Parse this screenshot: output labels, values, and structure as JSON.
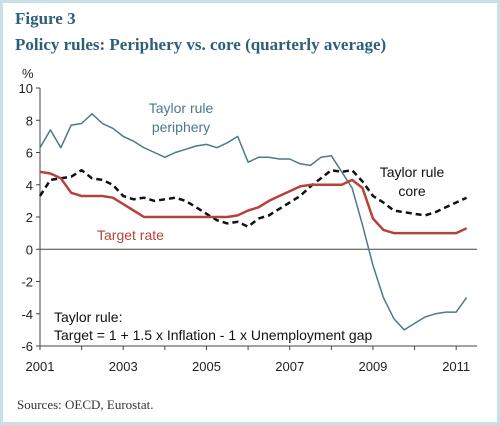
{
  "figure": {
    "label": "Figure 3",
    "title": "Policy rules: Periphery vs. core (quarterly average)",
    "sources": "Sources: OECD, Eurostat."
  },
  "chart_data": {
    "type": "line",
    "ylabel": "%",
    "xlim": [
      2001,
      2011.5
    ],
    "ylim": [
      -6,
      10
    ],
    "x_ticks": [
      2001,
      2003,
      2005,
      2007,
      2009,
      2011
    ],
    "y_ticks": [
      -6,
      -4,
      -2,
      0,
      2,
      4,
      6,
      8,
      10
    ],
    "grid": false,
    "colors": {
      "periphery": "#4a7a8c",
      "core": "#111111",
      "target": "#b5433a"
    },
    "series": [
      {
        "name": "Taylor rule periphery",
        "key": "periphery",
        "style": "solid",
        "x": [
          2001,
          2001.25,
          2001.5,
          2001.75,
          2002,
          2002.25,
          2002.5,
          2002.75,
          2003,
          2003.25,
          2003.5,
          2003.75,
          2004,
          2004.25,
          2004.5,
          2004.75,
          2005,
          2005.25,
          2005.5,
          2005.75,
          2006,
          2006.25,
          2006.5,
          2006.75,
          2007,
          2007.25,
          2007.5,
          2007.75,
          2008,
          2008.25,
          2008.5,
          2008.75,
          2009,
          2009.25,
          2009.5,
          2009.75,
          2010,
          2010.25,
          2010.5,
          2010.75,
          2011,
          2011.25
        ],
        "values": [
          6.3,
          7.4,
          6.3,
          7.7,
          7.8,
          8.4,
          7.8,
          7.5,
          7.0,
          6.7,
          6.3,
          6.0,
          5.7,
          6.0,
          6.2,
          6.4,
          6.5,
          6.3,
          6.6,
          7.0,
          5.4,
          5.7,
          5.7,
          5.6,
          5.6,
          5.3,
          5.2,
          5.7,
          5.8,
          4.8,
          3.8,
          1.5,
          -1.0,
          -3.0,
          -4.3,
          -5.0,
          -4.6,
          -4.2,
          -4.0,
          -3.9,
          -3.9,
          -3.0
        ]
      },
      {
        "name": "Taylor rule core",
        "key": "core",
        "style": "dashed",
        "x": [
          2001,
          2001.25,
          2001.5,
          2001.75,
          2002,
          2002.25,
          2002.5,
          2002.75,
          2003,
          2003.25,
          2003.5,
          2003.75,
          2004,
          2004.25,
          2004.5,
          2004.75,
          2005,
          2005.25,
          2005.5,
          2005.75,
          2006,
          2006.25,
          2006.5,
          2006.75,
          2007,
          2007.25,
          2007.5,
          2007.75,
          2008,
          2008.25,
          2008.5,
          2008.75,
          2009,
          2009.25,
          2009.5,
          2009.75,
          2010,
          2010.25,
          2010.5,
          2010.75,
          2011,
          2011.25
        ],
        "values": [
          3.3,
          4.3,
          4.4,
          4.5,
          4.9,
          4.4,
          4.3,
          4.0,
          3.3,
          3.1,
          3.2,
          3.0,
          3.1,
          3.2,
          3.0,
          2.6,
          2.2,
          1.8,
          1.6,
          1.7,
          1.4,
          1.9,
          2.1,
          2.5,
          2.9,
          3.3,
          3.9,
          4.4,
          4.9,
          4.8,
          4.9,
          4.2,
          3.3,
          2.9,
          2.4,
          2.3,
          2.2,
          2.1,
          2.3,
          2.6,
          2.9,
          3.2
        ]
      },
      {
        "name": "Target rate",
        "key": "target",
        "style": "solid",
        "x": [
          2001,
          2001.25,
          2001.5,
          2001.75,
          2002,
          2002.25,
          2002.5,
          2002.75,
          2003,
          2003.25,
          2003.5,
          2003.75,
          2004,
          2004.25,
          2004.5,
          2004.75,
          2005,
          2005.25,
          2005.5,
          2005.75,
          2006,
          2006.25,
          2006.5,
          2006.75,
          2007,
          2007.25,
          2007.5,
          2007.75,
          2008,
          2008.25,
          2008.5,
          2008.75,
          2009,
          2009.25,
          2009.5,
          2009.75,
          2010,
          2010.25,
          2010.5,
          2010.75,
          2011,
          2011.25
        ],
        "values": [
          4.8,
          4.7,
          4.4,
          3.5,
          3.3,
          3.3,
          3.3,
          3.2,
          2.8,
          2.4,
          2.0,
          2.0,
          2.0,
          2.0,
          2.0,
          2.0,
          2.0,
          2.0,
          2.0,
          2.1,
          2.4,
          2.6,
          3.0,
          3.3,
          3.6,
          3.9,
          4.0,
          4.0,
          4.0,
          4.0,
          4.3,
          3.8,
          1.9,
          1.2,
          1.0,
          1.0,
          1.0,
          1.0,
          1.0,
          1.0,
          1.0,
          1.3
        ]
      }
    ],
    "annotations": {
      "periphery": [
        "Taylor rule",
        "periphery"
      ],
      "core": [
        "Taylor rule",
        "core"
      ],
      "target": [
        "Target rate"
      ],
      "formula": [
        "Taylor rule:",
        "Target = 1 + 1.5 x Inflation - 1 x Unemployment gap"
      ]
    }
  }
}
